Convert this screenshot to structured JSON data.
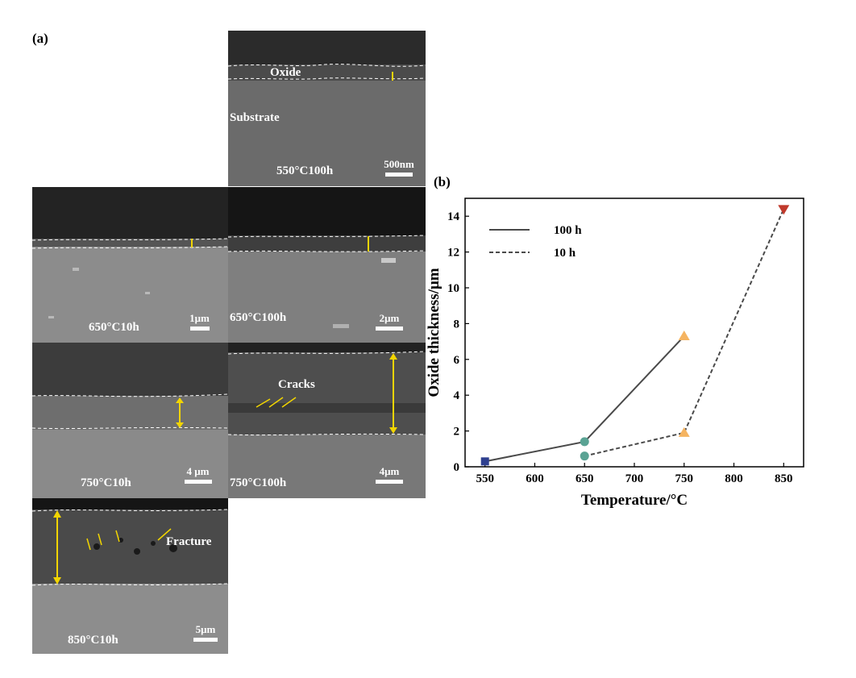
{
  "figure": {
    "panel_a_label": "(a)",
    "panel_b_label": "(b)"
  },
  "micrographs": [
    {
      "id": "550-100h",
      "condition": "550°C100h",
      "scale": "500nm",
      "notes": [
        "Oxide",
        "Substrate"
      ]
    },
    {
      "id": "650-10h",
      "condition": "650°C10h",
      "scale": "1μm",
      "notes": []
    },
    {
      "id": "650-100h",
      "condition": "650°C100h",
      "scale": "2μm",
      "notes": []
    },
    {
      "id": "750-10h",
      "condition": "750°C10h",
      "scale": "4 μm",
      "notes": []
    },
    {
      "id": "750-100h",
      "condition": "750°C100h",
      "scale": "4μm",
      "notes": [
        "Cracks"
      ]
    },
    {
      "id": "850-10h",
      "condition": "850°C10h",
      "scale": "5μm",
      "notes": [
        "Fracture"
      ]
    }
  ],
  "chart_data": {
    "type": "line",
    "xlabel": "Temperature/°C",
    "ylabel": "Oxide thickness/μm",
    "xlim": [
      530,
      870
    ],
    "ylim": [
      0,
      15
    ],
    "xticks": [
      550,
      600,
      650,
      700,
      750,
      800,
      850
    ],
    "yticks": [
      0,
      2,
      4,
      6,
      8,
      10,
      12,
      14
    ],
    "legend_position": "top-left",
    "series": [
      {
        "name": "100 h",
        "line_style": "solid",
        "color": "#4a4a4a",
        "points": [
          {
            "x": 550,
            "y": 0.3
          },
          {
            "x": 650,
            "y": 1.4
          },
          {
            "x": 750,
            "y": 7.3
          }
        ]
      },
      {
        "name": "10 h",
        "line_style": "dashed",
        "color": "#4a4a4a",
        "points": [
          {
            "x": 650,
            "y": 0.6
          },
          {
            "x": 750,
            "y": 1.9
          },
          {
            "x": 850,
            "y": 14.4
          }
        ]
      }
    ],
    "markers": [
      {
        "x": 550,
        "y": 0.3,
        "shape": "square",
        "color": "#2e3f8f"
      },
      {
        "x": 650,
        "y": 1.4,
        "shape": "circle",
        "color": "#5aa394"
      },
      {
        "x": 650,
        "y": 0.6,
        "shape": "circle",
        "color": "#5aa394"
      },
      {
        "x": 750,
        "y": 7.3,
        "shape": "triangle-up",
        "color": "#f5b461"
      },
      {
        "x": 750,
        "y": 1.9,
        "shape": "triangle-up",
        "color": "#f5b461"
      },
      {
        "x": 850,
        "y": 14.4,
        "shape": "triangle-down",
        "color": "#c0392b"
      }
    ]
  }
}
